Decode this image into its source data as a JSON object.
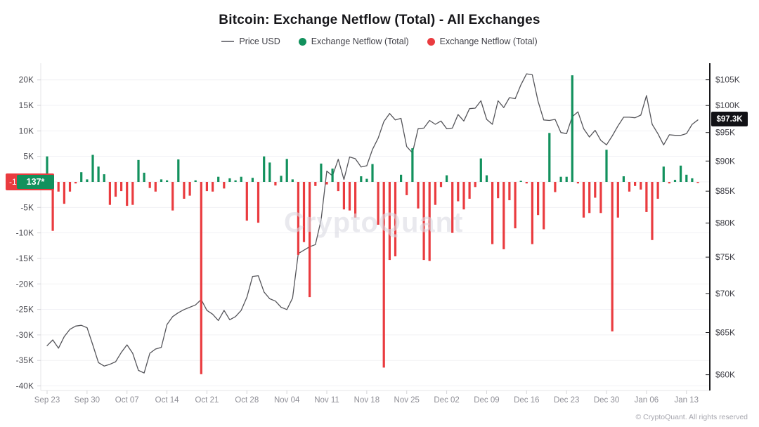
{
  "title": "Bitcoin: Exchange Netflow (Total) - All Exchanges",
  "watermark": "CryptoQuant",
  "copyright": "© CryptoQuant. All rights reserved",
  "legend": {
    "items": [
      {
        "label": "Price USD",
        "type": "line",
        "color": "#7c7c82"
      },
      {
        "label": "Exchange Netflow (Total)",
        "type": "dot",
        "color": "#12915d"
      },
      {
        "label": "Exchange Netflow (Total)",
        "type": "dot",
        "color": "#ea3b3f"
      }
    ]
  },
  "badges": {
    "left_negative": "-1",
    "left_positive": "137*",
    "right_price": "$97.3K"
  },
  "chart_data": {
    "type": "bar+line",
    "frequency": "daily",
    "x_tick_labels": [
      "Sep 23",
      "Sep 30",
      "Oct 07",
      "Oct 14",
      "Oct 21",
      "Oct 28",
      "Nov 04",
      "Nov 11",
      "Nov 18",
      "Nov 25",
      "Dec 02",
      "Dec 09",
      "Dec 16",
      "Dec 23",
      "Dec 30",
      "Jan 06",
      "Jan 13"
    ],
    "x_tick_day_indexes": [
      0,
      7,
      14,
      21,
      28,
      35,
      42,
      49,
      56,
      63,
      70,
      77,
      84,
      91,
      98,
      105,
      112
    ],
    "left_axis": {
      "series": "Exchange Netflow (Total), thousand BTC",
      "tick_labels": [
        "20K",
        "15K",
        "10K",
        "5K",
        "-5K",
        "-10K",
        "-15K",
        "-20K",
        "-25K",
        "-30K",
        "-35K",
        "-40K"
      ],
      "tick_values_k": [
        20,
        15,
        10,
        5,
        -5,
        -10,
        -15,
        -20,
        -25,
        -30,
        -35,
        -40
      ],
      "grid_values_k": [
        20,
        15,
        10,
        5,
        0,
        -5,
        -10,
        -15,
        -20,
        -25,
        -30,
        -35,
        -40
      ],
      "range_k": [
        -41,
        23.3
      ]
    },
    "right_axis": {
      "series": "Price USD",
      "scale": "log",
      "tick_labels": [
        "$105K",
        "$100K",
        "$95K",
        "$90K",
        "$85K",
        "$80K",
        "$75K",
        "$70K",
        "$65K",
        "$60K"
      ],
      "tick_values_usd_k": [
        105,
        100,
        95,
        90,
        85,
        80,
        75,
        70,
        65,
        60
      ],
      "current_price_label": "$97.3K"
    },
    "netflow_btc_k": [
      5.0,
      -9.6,
      -1.9,
      -4.3,
      -1.9,
      -0.3,
      1.9,
      0.5,
      5.3,
      3.0,
      1.5,
      -4.5,
      -2.9,
      -1.8,
      -4.7,
      -4.5,
      4.3,
      1.8,
      -1.2,
      -1.9,
      0.5,
      0.3,
      -5.6,
      4.4,
      -3.3,
      -2.7,
      0.3,
      -37.7,
      -1.8,
      -1.9,
      1.0,
      -1.3,
      0.7,
      0.3,
      1.0,
      -7.6,
      0.8,
      -8.0,
      5.0,
      3.8,
      -0.7,
      1.2,
      4.5,
      0.5,
      -14.3,
      -11.8,
      -22.6,
      -0.8,
      3.6,
      -0.5,
      2.6,
      -1.8,
      -5.4,
      -5.6,
      -7.0,
      1.1,
      0.6,
      3.5,
      -8.4,
      -36.4,
      -15.3,
      -14.6,
      1.4,
      -2.6,
      6.6,
      -5.2,
      -15.3,
      -15.5,
      -4.5,
      -1.0,
      1.3,
      -10.0,
      -3.8,
      -5.4,
      -3.3,
      -1.0,
      4.6,
      1.3,
      -12.2,
      -3.2,
      -13.2,
      -3.6,
      -9.1,
      0.2,
      -0.3,
      -12.2,
      -6.5,
      -9.3,
      9.6,
      -2.0,
      1.0,
      1.0,
      20.9,
      -0.3,
      -7.0,
      -6.1,
      -3.1,
      -6.1,
      6.3,
      -29.3,
      -7.0,
      1.1,
      -1.9,
      -0.8,
      -1.5,
      -5.9,
      -11.4,
      -3.3,
      3.0,
      -0.3,
      0.4,
      3.2,
      1.4,
      0.7,
      -0.2
    ],
    "price_usd_k": [
      63.4,
      64.1,
      63.1,
      64.5,
      65.4,
      65.8,
      65.9,
      65.6,
      63.5,
      61.4,
      61.0,
      61.2,
      61.5,
      62.6,
      63.5,
      62.5,
      60.5,
      60.2,
      62.5,
      63.0,
      63.2,
      66.0,
      67.0,
      67.5,
      67.9,
      68.2,
      68.5,
      69.2,
      67.8,
      67.3,
      66.5,
      67.8,
      66.6,
      67.0,
      67.8,
      69.5,
      72.3,
      72.4,
      70.2,
      69.3,
      69.0,
      68.2,
      67.9,
      69.4,
      75.5,
      76.0,
      76.5,
      76.8,
      80.5,
      88.3,
      87.5,
      90.3,
      86.9,
      90.7,
      90.4,
      89.0,
      89.2,
      92.0,
      94.0,
      97.0,
      98.5,
      97.3,
      97.6,
      92.5,
      91.4,
      95.7,
      95.8,
      97.2,
      96.5,
      97.1,
      95.7,
      95.8,
      98.3,
      97.1,
      99.4,
      99.5,
      100.9,
      97.4,
      96.5,
      100.9,
      99.6,
      101.5,
      101.3,
      104.0,
      106.2,
      106.0,
      100.8,
      97.3,
      97.2,
      97.4,
      95.0,
      94.8,
      97.9,
      98.8,
      95.7,
      94.2,
      95.4,
      93.6,
      92.8,
      94.4,
      96.2,
      97.8,
      97.8,
      97.7,
      98.2,
      101.9,
      96.5,
      94.8,
      92.8,
      94.6,
      94.5,
      94.5,
      94.8,
      96.5,
      97.3
    ],
    "colors": {
      "positive": "#12915d",
      "negative": "#ea3b3f",
      "price_line": "#55555a"
    }
  }
}
